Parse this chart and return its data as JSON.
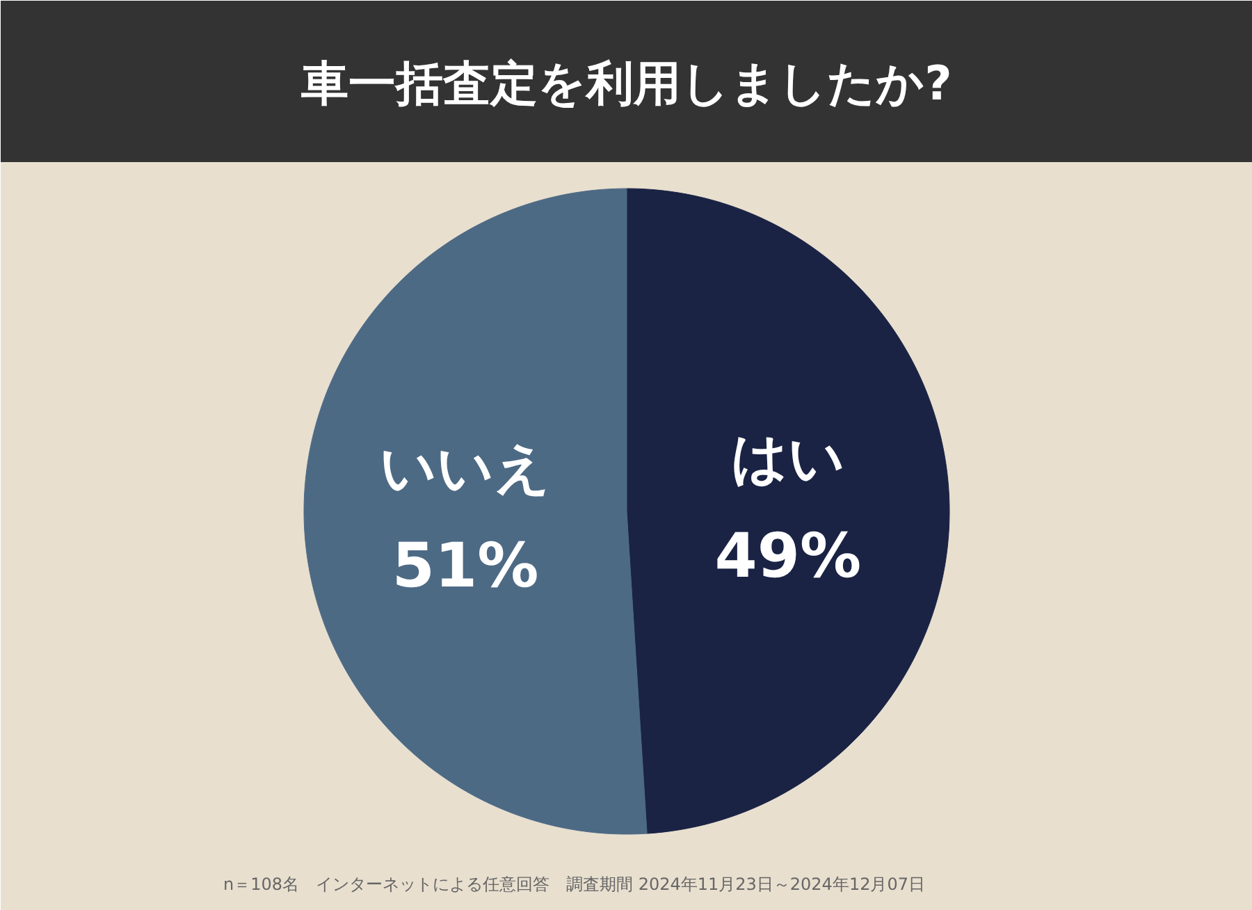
{
  "chart_data": {
    "type": "pie",
    "title": "車一括査定を利用しましたか?",
    "categories": [
      "はい",
      "いいえ"
    ],
    "values": [
      49,
      51
    ],
    "colors": [
      "#1a2344",
      "#4d6a85"
    ],
    "value_labels": [
      "49%",
      "51%"
    ],
    "annotations": [
      "n＝108名　インターネットによる任意回答　調査期間 2024年11月23日～2024年12月07日"
    ]
  }
}
